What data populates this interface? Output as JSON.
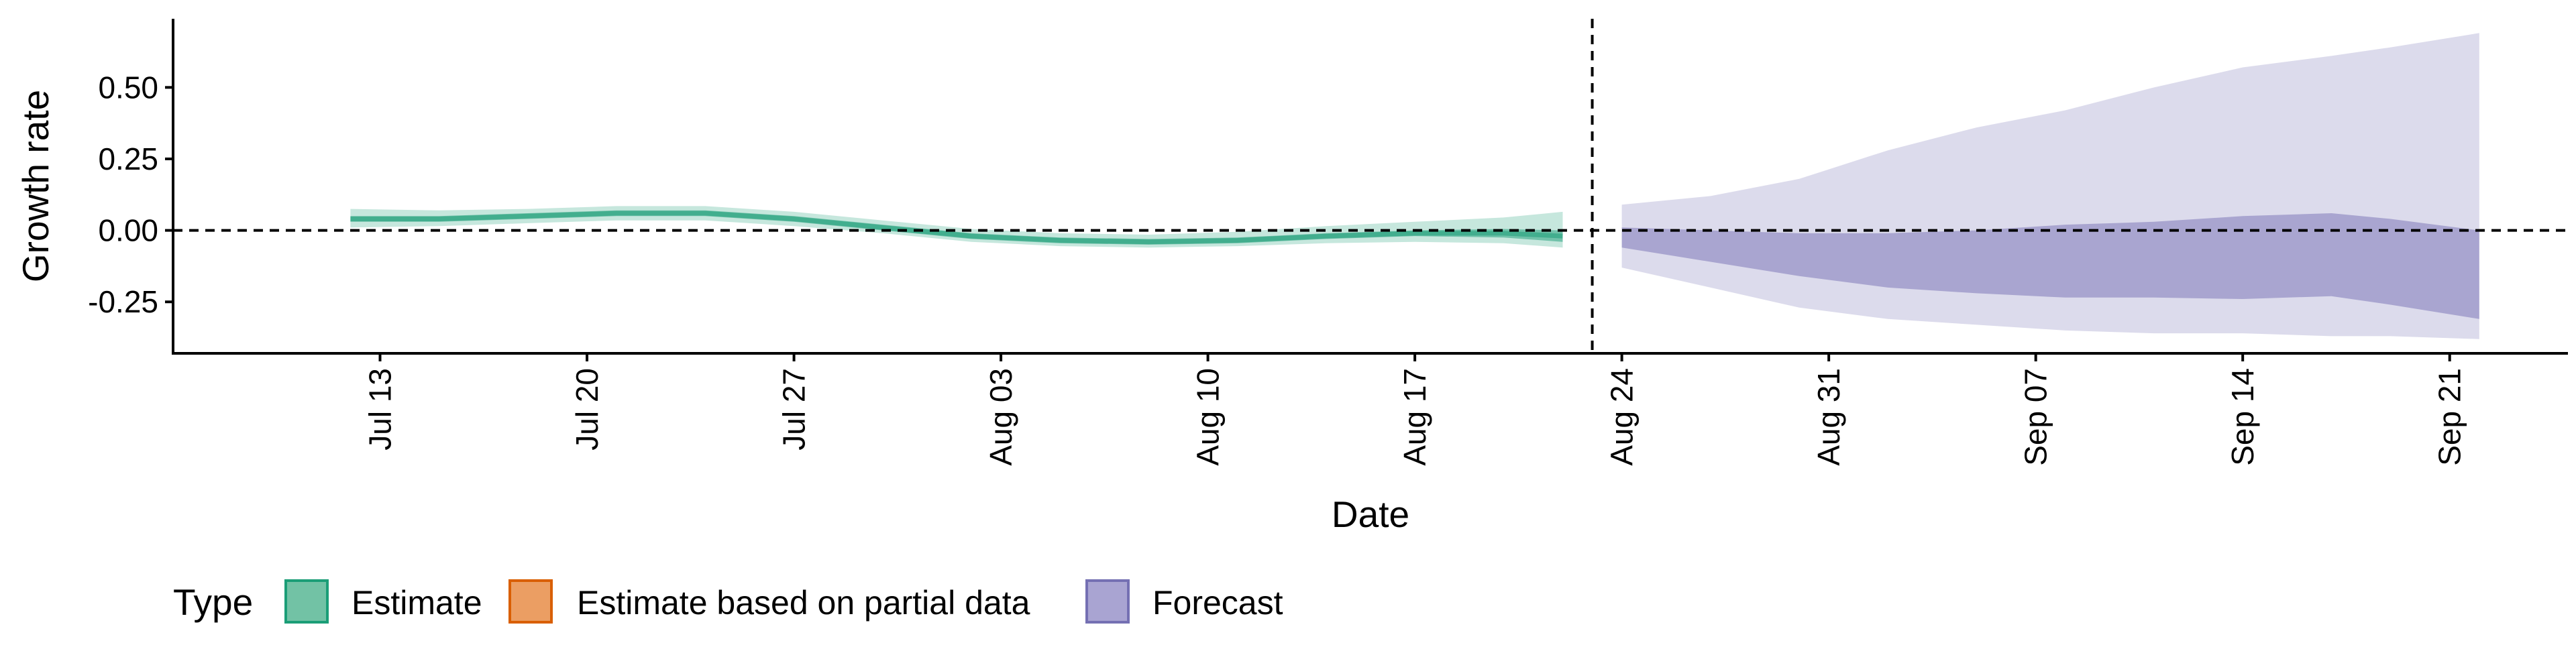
{
  "chart_data": {
    "type": "area",
    "title": "",
    "xlabel": "Date",
    "ylabel": "Growth rate",
    "xlim": [
      "2020-07-06",
      "2020-09-25"
    ],
    "ylim": [
      -0.43,
      0.74
    ],
    "y_ticks": [
      -0.25,
      0.0,
      0.25,
      0.5
    ],
    "y_tick_labels": [
      "-0.25",
      "0.00",
      "0.25",
      "0.50"
    ],
    "x_ticks": [
      "2020-07-13",
      "2020-07-20",
      "2020-07-27",
      "2020-08-03",
      "2020-08-10",
      "2020-08-17",
      "2020-08-24",
      "2020-08-31",
      "2020-09-07",
      "2020-09-14",
      "2020-09-21"
    ],
    "x_tick_labels": [
      "Jul 13",
      "Jul 20",
      "Jul 27",
      "Aug 03",
      "Aug 10",
      "Aug 17",
      "Aug 24",
      "Aug 31",
      "Sep 07",
      "Sep 14",
      "Sep 21"
    ],
    "reference_lines": {
      "horizontal_y": 0.0,
      "vertical_x": "2020-08-23",
      "style": "dashed"
    },
    "grid": false,
    "legend": {
      "title": "Type",
      "position": "bottom-left",
      "entries": [
        {
          "label": "Estimate",
          "fill": "#72c2a5",
          "stroke": "#1b9e77"
        },
        {
          "label": "Estimate based on partial data",
          "fill": "#eb9e63",
          "stroke": "#d95f02"
        },
        {
          "label": "Forecast",
          "fill": "#a9a4d2",
          "stroke": "#7570b3"
        }
      ]
    },
    "series": [
      {
        "name": "Estimate",
        "color": "#1b9e77",
        "x": [
          "2020-07-12",
          "2020-07-15",
          "2020-07-18",
          "2020-07-21",
          "2020-07-24",
          "2020-07-27",
          "2020-07-30",
          "2020-08-02",
          "2020-08-05",
          "2020-08-08",
          "2020-08-11",
          "2020-08-14",
          "2020-08-17",
          "2020-08-20",
          "2020-08-22"
        ],
        "median": [
          0.04,
          0.04,
          0.05,
          0.06,
          0.06,
          0.04,
          0.01,
          -0.02,
          -0.035,
          -0.04,
          -0.035,
          -0.02,
          -0.01,
          -0.01,
          -0.02
        ],
        "lower_50": [
          0.03,
          0.03,
          0.04,
          0.05,
          0.05,
          0.03,
          0.0,
          -0.03,
          -0.045,
          -0.05,
          -0.045,
          -0.03,
          -0.02,
          -0.025,
          -0.04
        ],
        "upper_50": [
          0.05,
          0.05,
          0.06,
          0.07,
          0.07,
          0.05,
          0.02,
          -0.01,
          -0.025,
          -0.03,
          -0.025,
          -0.01,
          0.0,
          0.005,
          0.0
        ],
        "lower_90": [
          0.01,
          0.015,
          0.025,
          0.035,
          0.035,
          0.015,
          -0.01,
          -0.04,
          -0.055,
          -0.06,
          -0.055,
          -0.045,
          -0.04,
          -0.045,
          -0.06
        ],
        "upper_90": [
          0.075,
          0.07,
          0.075,
          0.085,
          0.085,
          0.065,
          0.035,
          0.005,
          -0.01,
          -0.015,
          -0.005,
          0.015,
          0.03,
          0.045,
          0.065
        ]
      },
      {
        "name": "Forecast",
        "color": "#7570b3",
        "x": [
          "2020-08-24",
          "2020-08-27",
          "2020-08-30",
          "2020-09-02",
          "2020-09-05",
          "2020-09-08",
          "2020-09-11",
          "2020-09-14",
          "2020-09-17",
          "2020-09-19",
          "2020-09-22"
        ],
        "lower_50": [
          -0.06,
          -0.11,
          -0.16,
          -0.2,
          -0.22,
          -0.235,
          -0.235,
          -0.24,
          -0.23,
          -0.26,
          -0.31
        ],
        "upper_50": [
          0.01,
          0.0,
          -0.01,
          -0.01,
          0.0,
          0.02,
          0.03,
          0.05,
          0.06,
          0.04,
          0.0
        ],
        "lower_90": [
          -0.13,
          -0.2,
          -0.27,
          -0.31,
          -0.33,
          -0.35,
          -0.36,
          -0.36,
          -0.37,
          -0.37,
          -0.38
        ],
        "upper_90": [
          0.09,
          0.12,
          0.18,
          0.28,
          0.36,
          0.42,
          0.5,
          0.57,
          0.61,
          0.64,
          0.69
        ]
      }
    ]
  }
}
